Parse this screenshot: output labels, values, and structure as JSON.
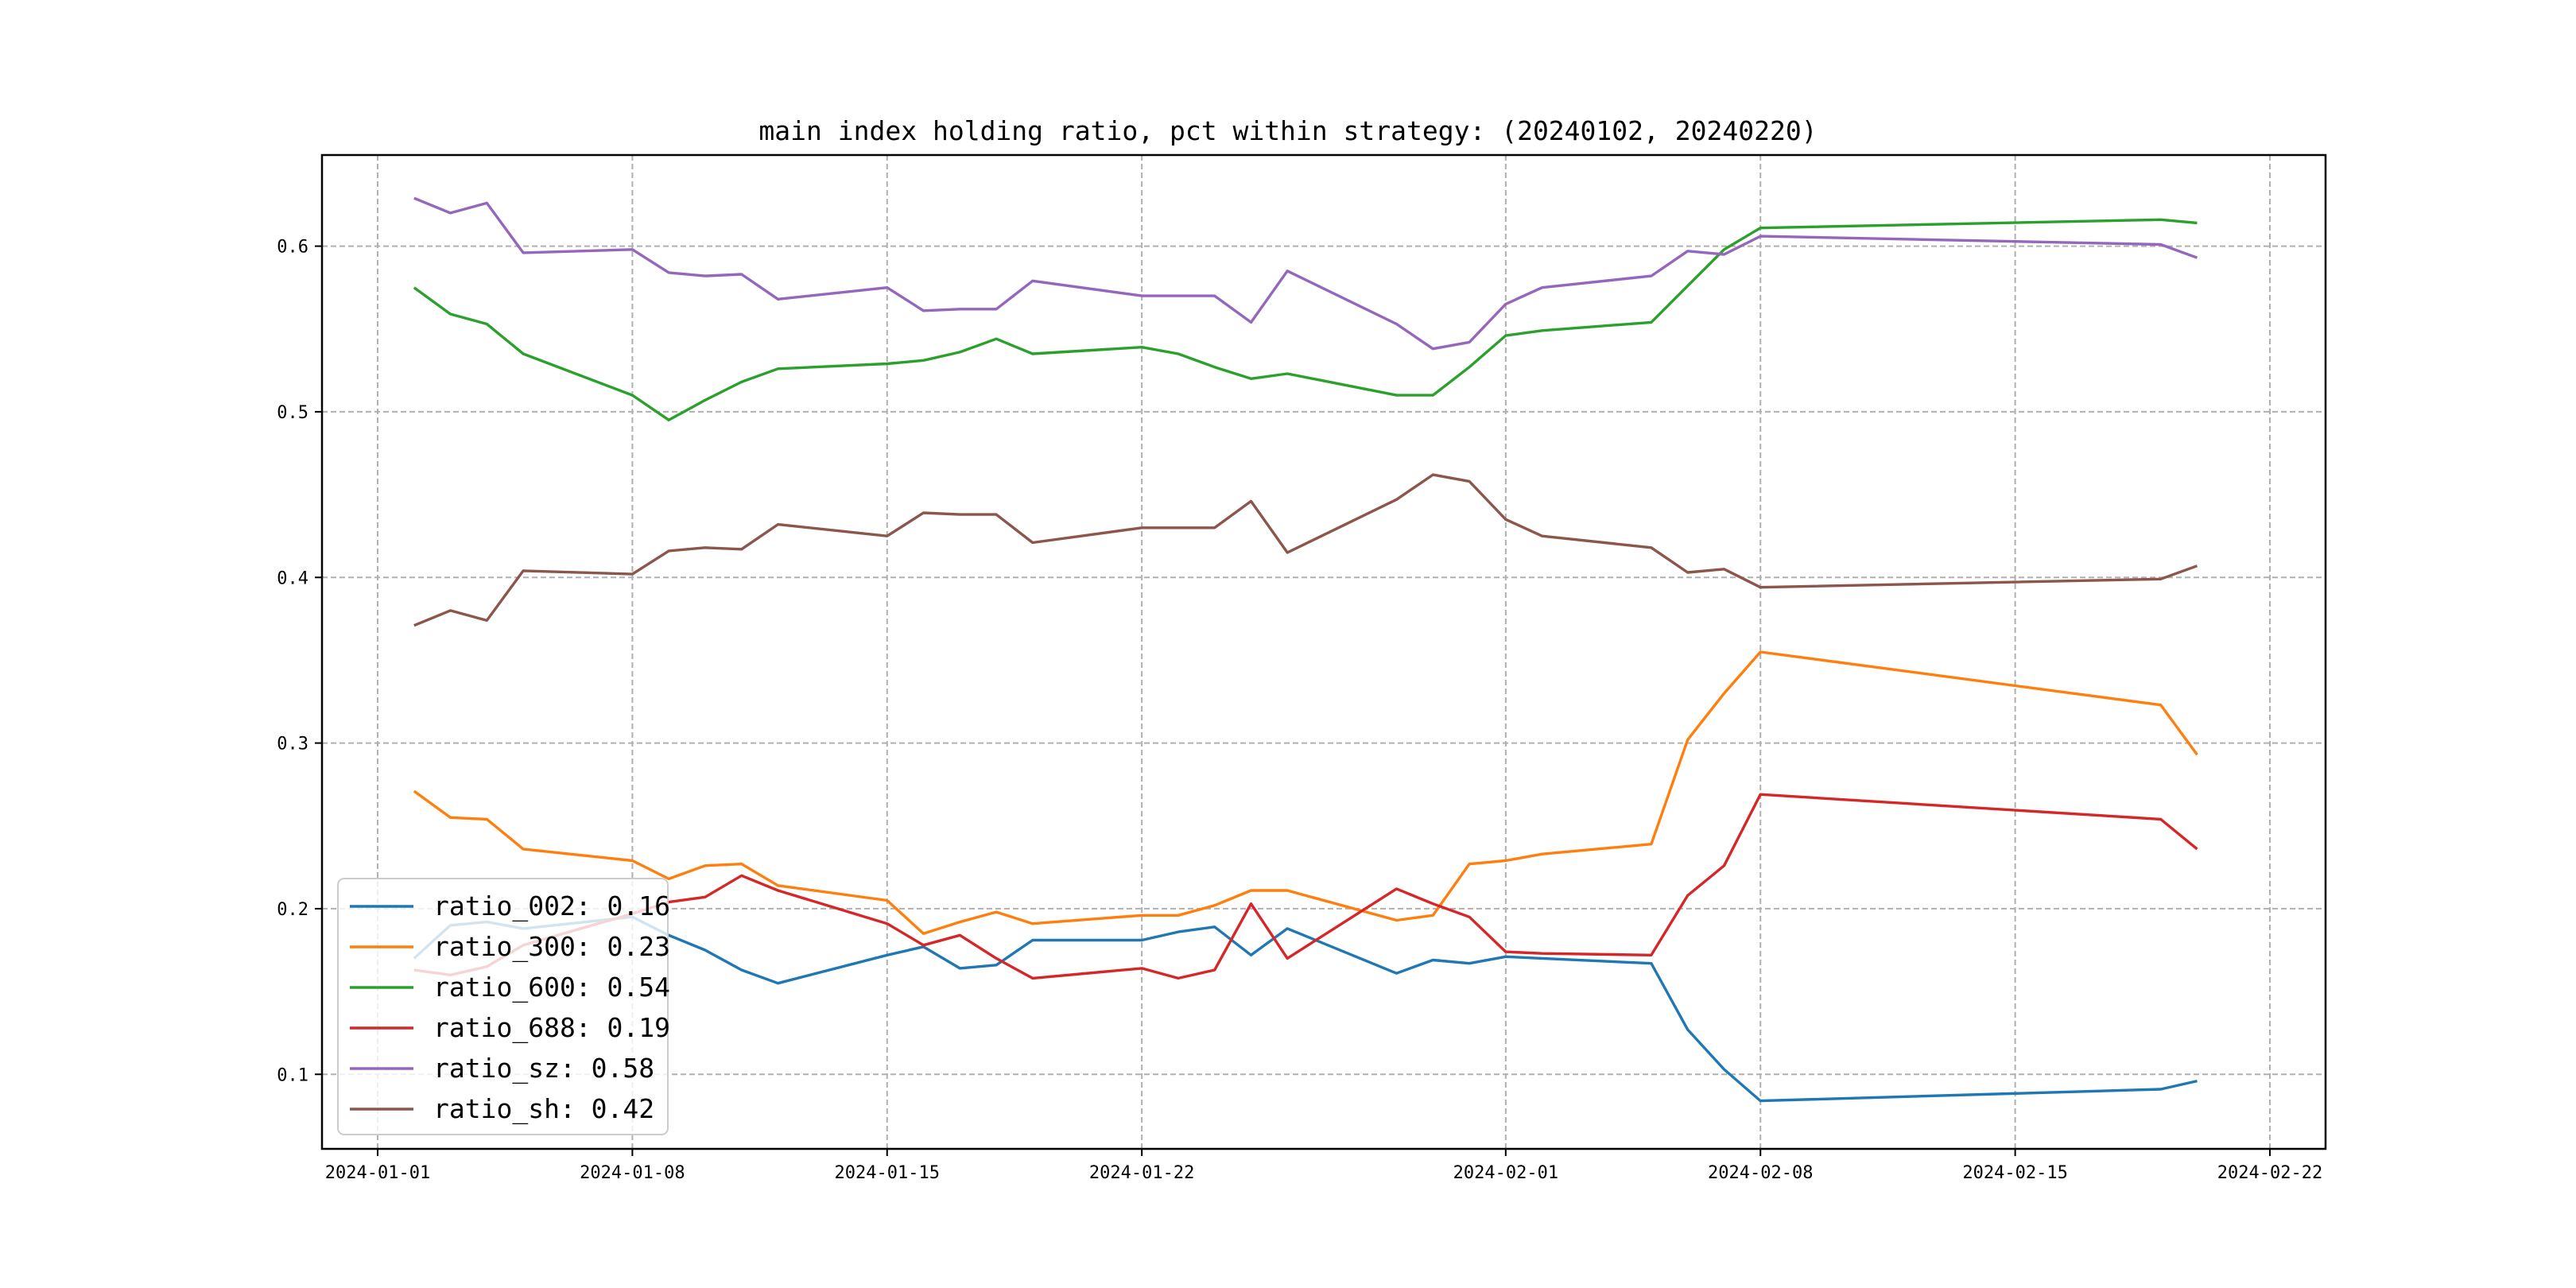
{
  "chart_data": {
    "type": "line",
    "title": "main index holding ratio, pct within strategy: (20240102, 20240220)",
    "xlabel": "",
    "ylabel": "",
    "xlim": [
      "2024-01-01",
      "2024-02-22"
    ],
    "ylim": [
      0.055,
      0.655
    ],
    "x_ticks": [
      "2024-01-01",
      "2024-01-08",
      "2024-01-15",
      "2024-01-22",
      "2024-02-01",
      "2024-02-08",
      "2024-02-15",
      "2024-02-22"
    ],
    "y_ticks": [
      0.1,
      0.2,
      0.3,
      0.4,
      0.5,
      0.6
    ],
    "y_tick_labels": [
      "0.1",
      "0.2",
      "0.3",
      "0.4",
      "0.5",
      "0.6"
    ],
    "grid": true,
    "legend_position": "lower-left",
    "x": [
      "2024-01-02",
      "2024-01-03",
      "2024-01-04",
      "2024-01-05",
      "2024-01-08",
      "2024-01-09",
      "2024-01-10",
      "2024-01-11",
      "2024-01-12",
      "2024-01-15",
      "2024-01-16",
      "2024-01-17",
      "2024-01-18",
      "2024-01-19",
      "2024-01-22",
      "2024-01-23",
      "2024-01-24",
      "2024-01-25",
      "2024-01-26",
      "2024-01-29",
      "2024-01-30",
      "2024-01-31",
      "2024-02-01",
      "2024-02-02",
      "2024-02-05",
      "2024-02-06",
      "2024-02-07",
      "2024-02-08",
      "2024-02-19",
      "2024-02-20"
    ],
    "series": [
      {
        "name": "ratio_002",
        "legend_label": "ratio_002: 0.16",
        "color": "#1f77b4",
        "values": [
          0.17,
          0.19,
          0.192,
          0.188,
          0.195,
          0.184,
          0.175,
          0.163,
          0.155,
          0.172,
          0.177,
          0.164,
          0.166,
          0.181,
          0.181,
          0.186,
          0.189,
          0.172,
          0.188,
          0.161,
          0.169,
          0.167,
          0.171,
          0.17,
          0.167,
          0.127,
          0.103,
          0.084,
          0.091,
          0.096
        ]
      },
      {
        "name": "ratio_300",
        "legend_label": "ratio_300: 0.23",
        "color": "#ff7f0e",
        "values": [
          0.271,
          0.255,
          0.254,
          0.236,
          0.229,
          0.218,
          0.226,
          0.227,
          0.214,
          0.205,
          0.185,
          0.192,
          0.198,
          0.191,
          0.196,
          0.196,
          0.202,
          0.211,
          0.211,
          0.193,
          0.196,
          0.227,
          0.229,
          0.233,
          0.239,
          0.302,
          0.33,
          0.355,
          0.323,
          0.293
        ]
      },
      {
        "name": "ratio_600",
        "legend_label": "ratio_600: 0.54",
        "color": "#2ca02c",
        "values": [
          0.575,
          0.559,
          0.553,
          0.535,
          0.51,
          0.495,
          0.507,
          0.518,
          0.526,
          0.529,
          0.531,
          0.536,
          0.544,
          0.535,
          0.539,
          0.535,
          0.527,
          0.52,
          0.523,
          0.51,
          0.51,
          0.527,
          0.546,
          0.549,
          0.554,
          0.576,
          0.598,
          0.611,
          0.616,
          0.614
        ]
      },
      {
        "name": "ratio_688",
        "legend_label": "ratio_688: 0.19",
        "color": "#d62728",
        "values": [
          0.163,
          0.16,
          0.165,
          0.178,
          0.197,
          0.204,
          0.207,
          0.22,
          0.211,
          0.191,
          0.178,
          0.184,
          0.17,
          0.158,
          0.164,
          0.158,
          0.163,
          0.203,
          0.17,
          0.212,
          0.203,
          0.195,
          0.174,
          0.173,
          0.172,
          0.208,
          0.226,
          0.269,
          0.254,
          0.236
        ]
      },
      {
        "name": "ratio_sz",
        "legend_label": "ratio_sz: 0.58",
        "color": "#9467bd",
        "values": [
          0.629,
          0.62,
          0.626,
          0.596,
          0.598,
          0.584,
          0.582,
          0.583,
          0.568,
          0.575,
          0.561,
          0.562,
          0.562,
          0.579,
          0.57,
          0.57,
          0.57,
          0.554,
          0.585,
          0.553,
          0.538,
          0.542,
          0.565,
          0.575,
          0.582,
          0.597,
          0.595,
          0.606,
          0.601,
          0.593
        ]
      },
      {
        "name": "ratio_sh",
        "legend_label": "ratio_sh: 0.42",
        "color": "#8c564b",
        "values": [
          0.371,
          0.38,
          0.374,
          0.404,
          0.402,
          0.416,
          0.418,
          0.417,
          0.432,
          0.425,
          0.439,
          0.438,
          0.438,
          0.421,
          0.43,
          0.43,
          0.43,
          0.446,
          0.415,
          0.447,
          0.462,
          0.458,
          0.435,
          0.425,
          0.418,
          0.403,
          0.405,
          0.394,
          0.399,
          0.407
        ]
      }
    ]
  }
}
